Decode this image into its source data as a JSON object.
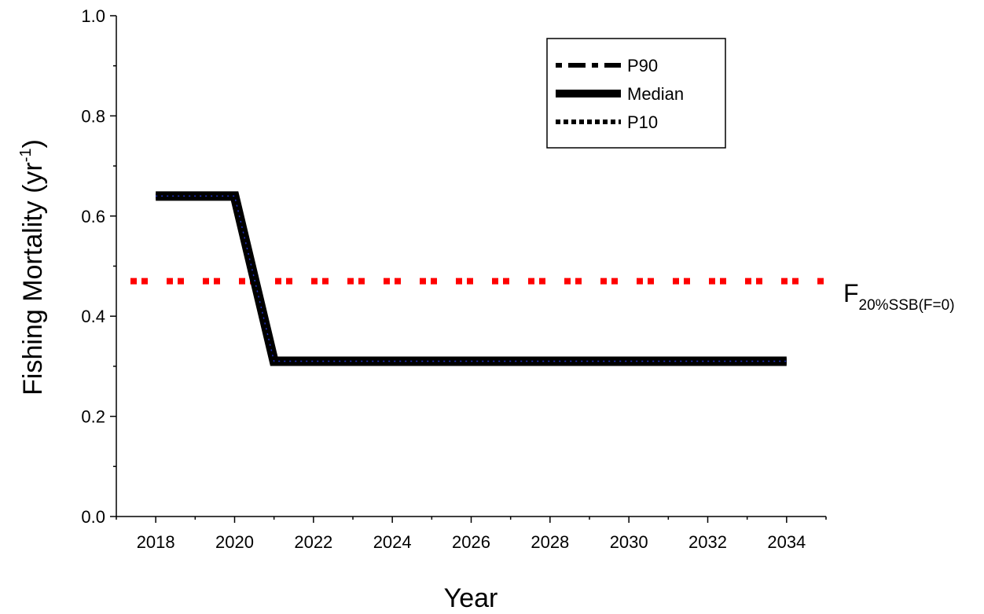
{
  "chart_data": {
    "type": "line",
    "title": "",
    "xlabel": "Year",
    "ylabel": {
      "main": "Fishing Mortality (yr",
      "sup": "-1",
      "close": ")"
    },
    "xlim": [
      2017,
      2035
    ],
    "ylim": [
      0.0,
      1.0
    ],
    "x_ticks": [
      2018,
      2020,
      2022,
      2024,
      2026,
      2028,
      2030,
      2032,
      2034
    ],
    "x_tick_labels": [
      "2018",
      "2020",
      "2022",
      "2024",
      "2026",
      "2028",
      "2030",
      "2032",
      "2034"
    ],
    "y_ticks": [
      0.0,
      0.2,
      0.4,
      0.6,
      0.8,
      1.0
    ],
    "y_tick_labels": [
      "0.0",
      "0.2",
      "0.4",
      "0.6",
      "0.8",
      "1.0"
    ],
    "grid": false,
    "legend_position": "top-right",
    "x": [
      2018,
      2019,
      2020,
      2021,
      2022,
      2023,
      2024,
      2025,
      2026,
      2027,
      2028,
      2029,
      2030,
      2031,
      2032,
      2033,
      2034
    ],
    "series": [
      {
        "name": "P90",
        "style": "dash-dot",
        "color": "#000000",
        "values": [
          0.64,
          0.64,
          0.64,
          0.31,
          0.31,
          0.31,
          0.31,
          0.31,
          0.31,
          0.31,
          0.31,
          0.31,
          0.31,
          0.31,
          0.31,
          0.31,
          0.31
        ]
      },
      {
        "name": "Median",
        "style": "solid",
        "color": "#000000",
        "values": [
          0.64,
          0.64,
          0.64,
          0.31,
          0.31,
          0.31,
          0.31,
          0.31,
          0.31,
          0.31,
          0.31,
          0.31,
          0.31,
          0.31,
          0.31,
          0.31,
          0.31
        ]
      },
      {
        "name": "P10",
        "style": "dotted",
        "color": "#000000",
        "overlay_color": "#2233cc",
        "values": [
          0.64,
          0.64,
          0.64,
          0.31,
          0.31,
          0.31,
          0.31,
          0.31,
          0.31,
          0.31,
          0.31,
          0.31,
          0.31,
          0.31,
          0.31,
          0.31,
          0.31
        ]
      }
    ],
    "reference_line": {
      "value": 0.47,
      "color": "#ff0000",
      "style": "dotted",
      "label_main": "F",
      "label_sub": "20%SSB(F=0)"
    }
  }
}
